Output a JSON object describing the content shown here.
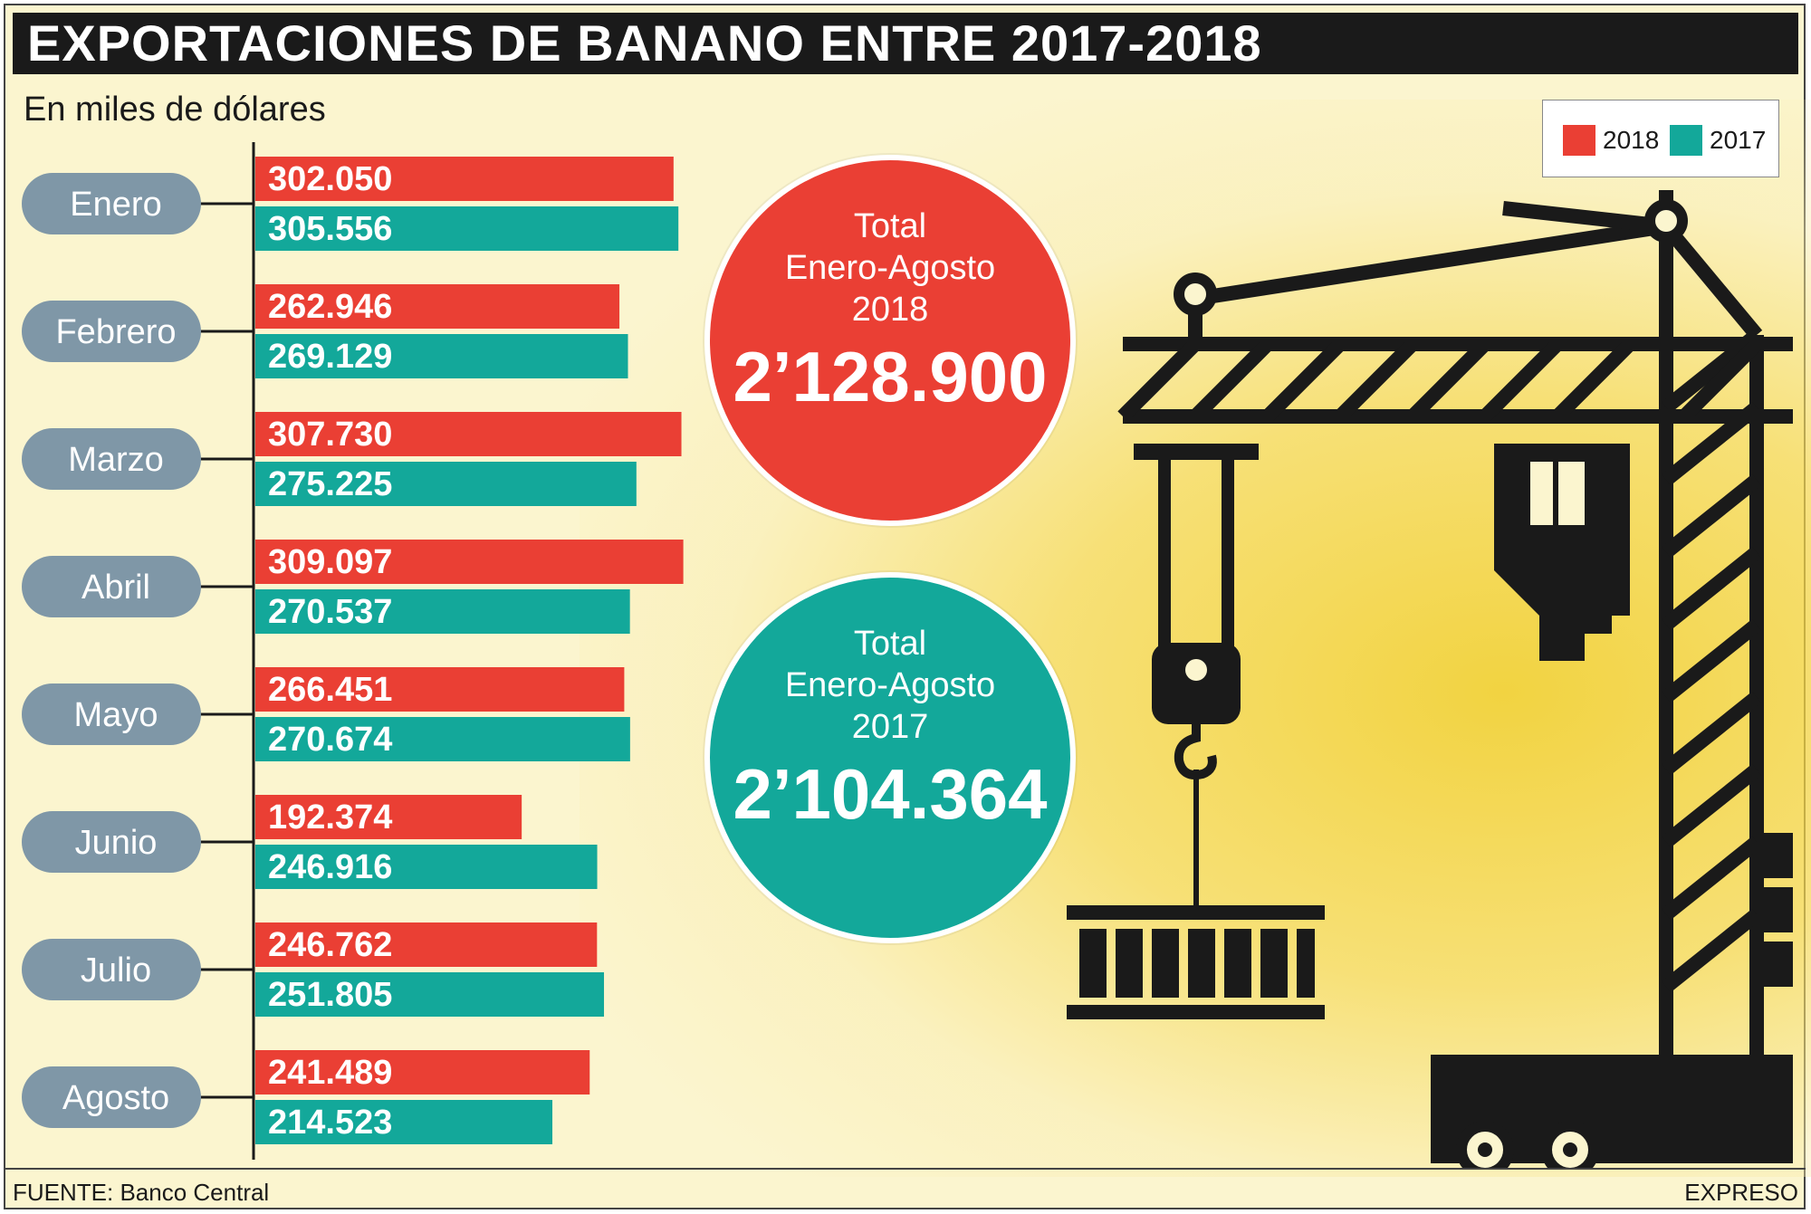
{
  "title": "EXPORTACIONES DE BANANO ENTRE 2017-2018",
  "subtitle": "En miles de dólares",
  "legend": [
    {
      "label": "2018",
      "color": "#ea3f34"
    },
    {
      "label": "2017",
      "color": "#13a89a"
    }
  ],
  "chart_data": {
    "type": "bar",
    "orientation": "horizontal",
    "categories": [
      "Enero",
      "Febrero",
      "Marzo",
      "Abril",
      "Mayo",
      "Junio",
      "Julio",
      "Agosto"
    ],
    "series": [
      {
        "name": "2018",
        "color": "#ea3f34",
        "values": [
          302050,
          262946,
          307730,
          309097,
          266451,
          192374,
          246762,
          241489
        ],
        "labels": [
          "302.050",
          "262.946",
          "307.730",
          "309.097",
          "266.451",
          "192.374",
          "246.762",
          "241.489"
        ]
      },
      {
        "name": "2017",
        "color": "#13a89a",
        "values": [
          305556,
          269129,
          275225,
          270537,
          270674,
          246916,
          251805,
          214523
        ],
        "labels": [
          "305.556",
          "269.129",
          "275.225",
          "270.537",
          "270.674",
          "246.916",
          "251.805",
          "214.523"
        ]
      }
    ],
    "xlim": [
      0,
      310000
    ],
    "grid": false,
    "legend_position": "top-right"
  },
  "totals": [
    {
      "label_line1": "Total",
      "label_line2": "Enero-Agosto",
      "label_line3": "2018",
      "value": "2’128.900",
      "color": "#ea3f34"
    },
    {
      "label_line1": "Total",
      "label_line2": "Enero-Agosto",
      "label_line3": "2017",
      "value": "2’104.364",
      "color": "#13a89a"
    }
  ],
  "footer": {
    "source": "FUENTE: Banco Central",
    "brand": "EXPRESO"
  },
  "icons": [
    "crane-icon",
    "banana-background"
  ]
}
